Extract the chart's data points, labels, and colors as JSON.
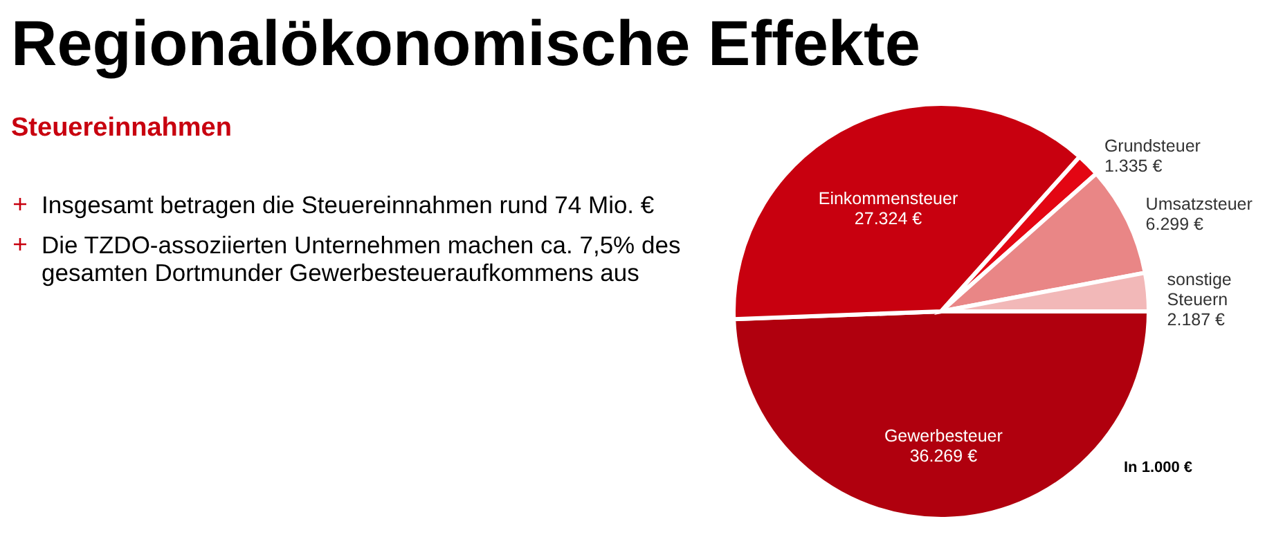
{
  "chart_data": {
    "type": "pie",
    "title": "Regionalökonomische Effekte",
    "subtitle": "Steuereinnahmen",
    "annotations": [
      "Insgesamt betragen die Steuereinnahmen rund 74 Mio. €",
      "Die TZDO-assoziierten Unternehmen machen ca. 7,5% des gesamten Dortmunder Gewerbesteueraufkommens aus",
      "In 1.000 €"
    ],
    "categories": [
      "Gewerbesteuer",
      "Einkommensteuer",
      "Grundsteuer",
      "Umsatzsteuer",
      "sonstige Steuern"
    ],
    "values": [
      36269,
      27324,
      1335,
      6299,
      2187
    ],
    "value_labels": [
      "36.269 €",
      "27.324 €",
      "1.335 €",
      "6.299 €",
      "2.187 €"
    ],
    "colors": [
      "#b0000e",
      "#c8000f",
      "#e30613",
      "#e98686",
      "#f2b8b8"
    ]
  }
}
